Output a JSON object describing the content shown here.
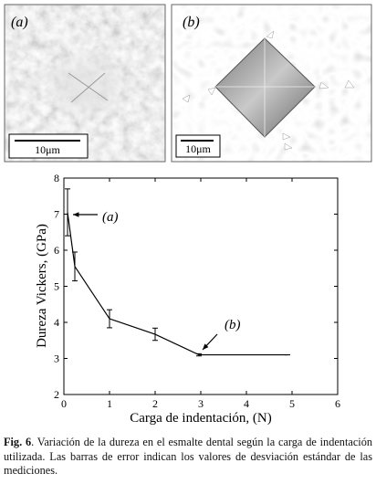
{
  "figure": {
    "panels": [
      {
        "label": "(a)",
        "scale_label": "10μm"
      },
      {
        "label": "(b)",
        "scale_label": "10μm"
      }
    ]
  },
  "chart_data": {
    "type": "line",
    "xlabel": "Carga de indentación, (N)",
    "ylabel": "Dureza Vickers, (GPa)",
    "x": [
      0.08,
      0.24,
      1.0,
      2.0,
      2.96,
      4.9
    ],
    "series": [
      {
        "color": "#000000",
        "values": [
          7.05,
          5.55,
          4.1,
          3.67,
          3.1,
          3.1
        ],
        "errors": [
          0.65,
          0.4,
          0.25,
          0.17,
          0.03,
          0
        ]
      }
    ],
    "xlim": [
      0,
      6
    ],
    "ylim": [
      2,
      8
    ],
    "xticks": [
      0,
      1,
      2,
      3,
      4,
      5,
      6
    ],
    "yticks": [
      2,
      3,
      4,
      5,
      6,
      7,
      8
    ],
    "annotations": [
      "(a)",
      "(b)"
    ]
  },
  "caption": {
    "label": "Fig. 6",
    "text": ". Variación de la dureza en el esmalte dental según la carga de indentación utilizada. Las barras de error indican los valores de desviación estándar de las mediciones."
  }
}
